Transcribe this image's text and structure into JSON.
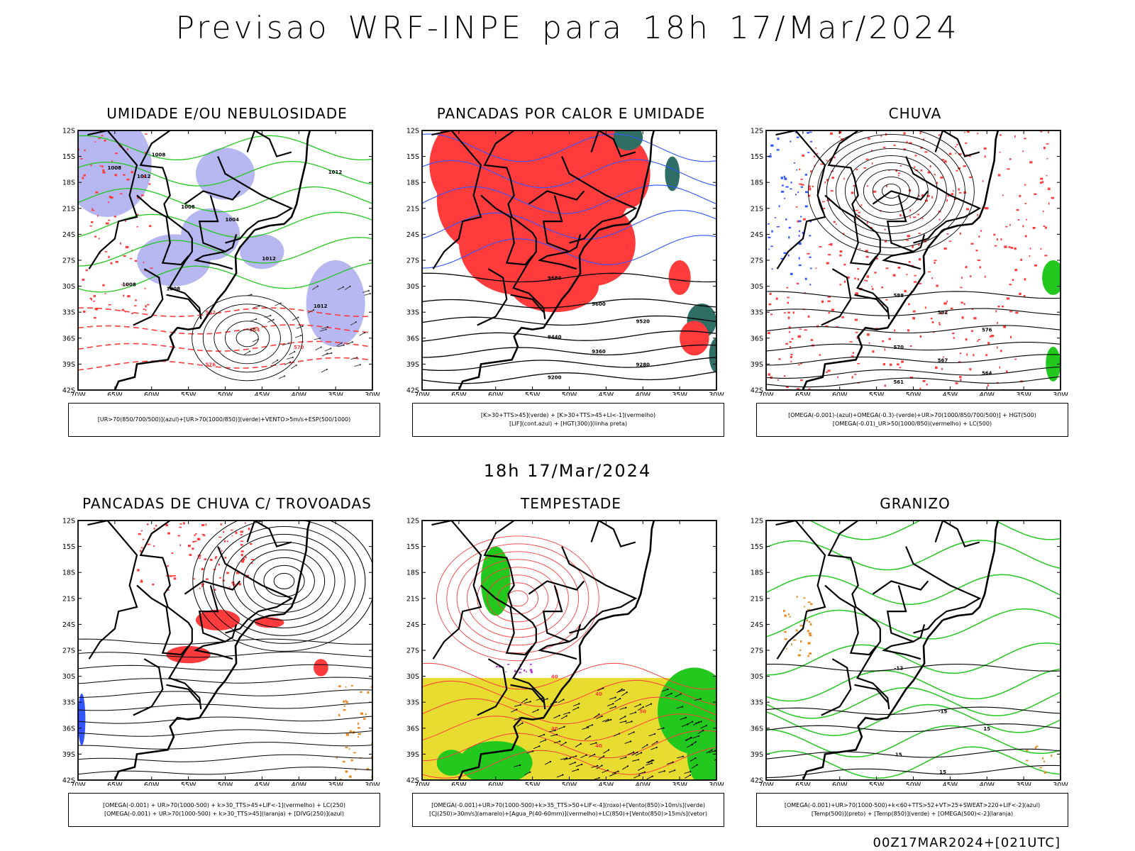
{
  "header": {
    "title": "Previsao WRF-INPE  para 18h 17/Mar/2024",
    "subtitle": "18h 17/Mar/2024"
  },
  "footer": {
    "run": "00Z17MAR2024+[021UTC]"
  },
  "axes": {
    "lat_labels": [
      "12S",
      "15S",
      "18S",
      "21S",
      "24S",
      "27S",
      "30S",
      "33S",
      "36S",
      "39S",
      "42S"
    ],
    "lon_labels": [
      "70W",
      "65W",
      "60W",
      "55W",
      "50W",
      "45W",
      "40W",
      "35W",
      "30W"
    ]
  },
  "colors": {
    "red": "#ff3b3b",
    "green": "#22c81e",
    "blue": "#3355ff",
    "lavender": "#aaaaee",
    "yellow": "#e8dc30",
    "teal": "#2e6e64",
    "orange": "#e88a20",
    "purple": "#b040d0"
  },
  "panels": [
    {
      "title": "UMIDADE E/OU NEBULOSIDADE",
      "legend": [
        "[UR>70(850/700/500)](azul)+[UR>70(1000/850)](verde)+VENTO>5m/s+ESP(500/1000)"
      ],
      "contour_labels": [
        "1008",
        "1008",
        "1012",
        "1012",
        "1004",
        "1008",
        "552",
        "564",
        "570",
        "576"
      ]
    },
    {
      "title": "PANCADAS POR CALOR E UMIDADE",
      "legend": [
        "[K>30+TTS>45](verde) + [K>30+TTS>45+LI<-1](vermelho)",
        "[LIF](cont.azul) + [HGT(300)](linha preta)"
      ],
      "contour_labels": [
        "9680",
        "9600",
        "9520",
        "9440",
        "9360",
        "9280",
        "9200"
      ]
    },
    {
      "title": "CHUVA",
      "legend": [
        "[OMEGA(-0.001)-(azul)+OMEGA(-0.3)-(verde)+UR>70(1000/850/700/500)] + HGT(500)",
        "[OMEGA(-0.01)_UR>50(1000/850)(vermelho) + LC(500)"
      ],
      "contour_labels": [
        "588",
        "582",
        "576",
        "570",
        "567",
        "564",
        "561"
      ]
    },
    {
      "title": "PANCADAS DE CHUVA C/ TROVOADAS",
      "legend": [
        "[OMEGA(-0.001) + UR>70(1000-500) + k>30_TTS>45+LIF<-1](vermelho) + LC(250)",
        "[OMEGA(-0.001) + UR>70(1000-500) + k>30_TTS>45](laranja) + [DIVG(250)](azul)"
      ],
      "contour_labels": []
    },
    {
      "title": "TEMPESTADE",
      "legend": [
        "[OMEGA(-0.001)+UR>70(1000-500)+k>35_TTS>50+LIF<-4](roxo)+[Vento(850)>10m/s](verde)",
        "[CJ(250)>30m/s](amarelo)+[Agua_P(40-60mm)](vermelho)+LC(850)+[Vento(850)>15m/s](vetor)"
      ],
      "contour_labels": [
        "40",
        "40",
        "50",
        "40",
        "40"
      ]
    },
    {
      "title": "GRANIZO",
      "legend": [
        "[OMEGA(-0.001)+UR>70(1000-500)+k<60+TTS>52+VT>25+SWEAT>220+LIF<-2](azul)",
        "[Temp(500)](preto) + [Temp(850)](verde) + [OMEGA(500)<-2](laranja)"
      ],
      "contour_labels": [
        "-12",
        "-15",
        "15",
        "15",
        "15"
      ]
    }
  ]
}
